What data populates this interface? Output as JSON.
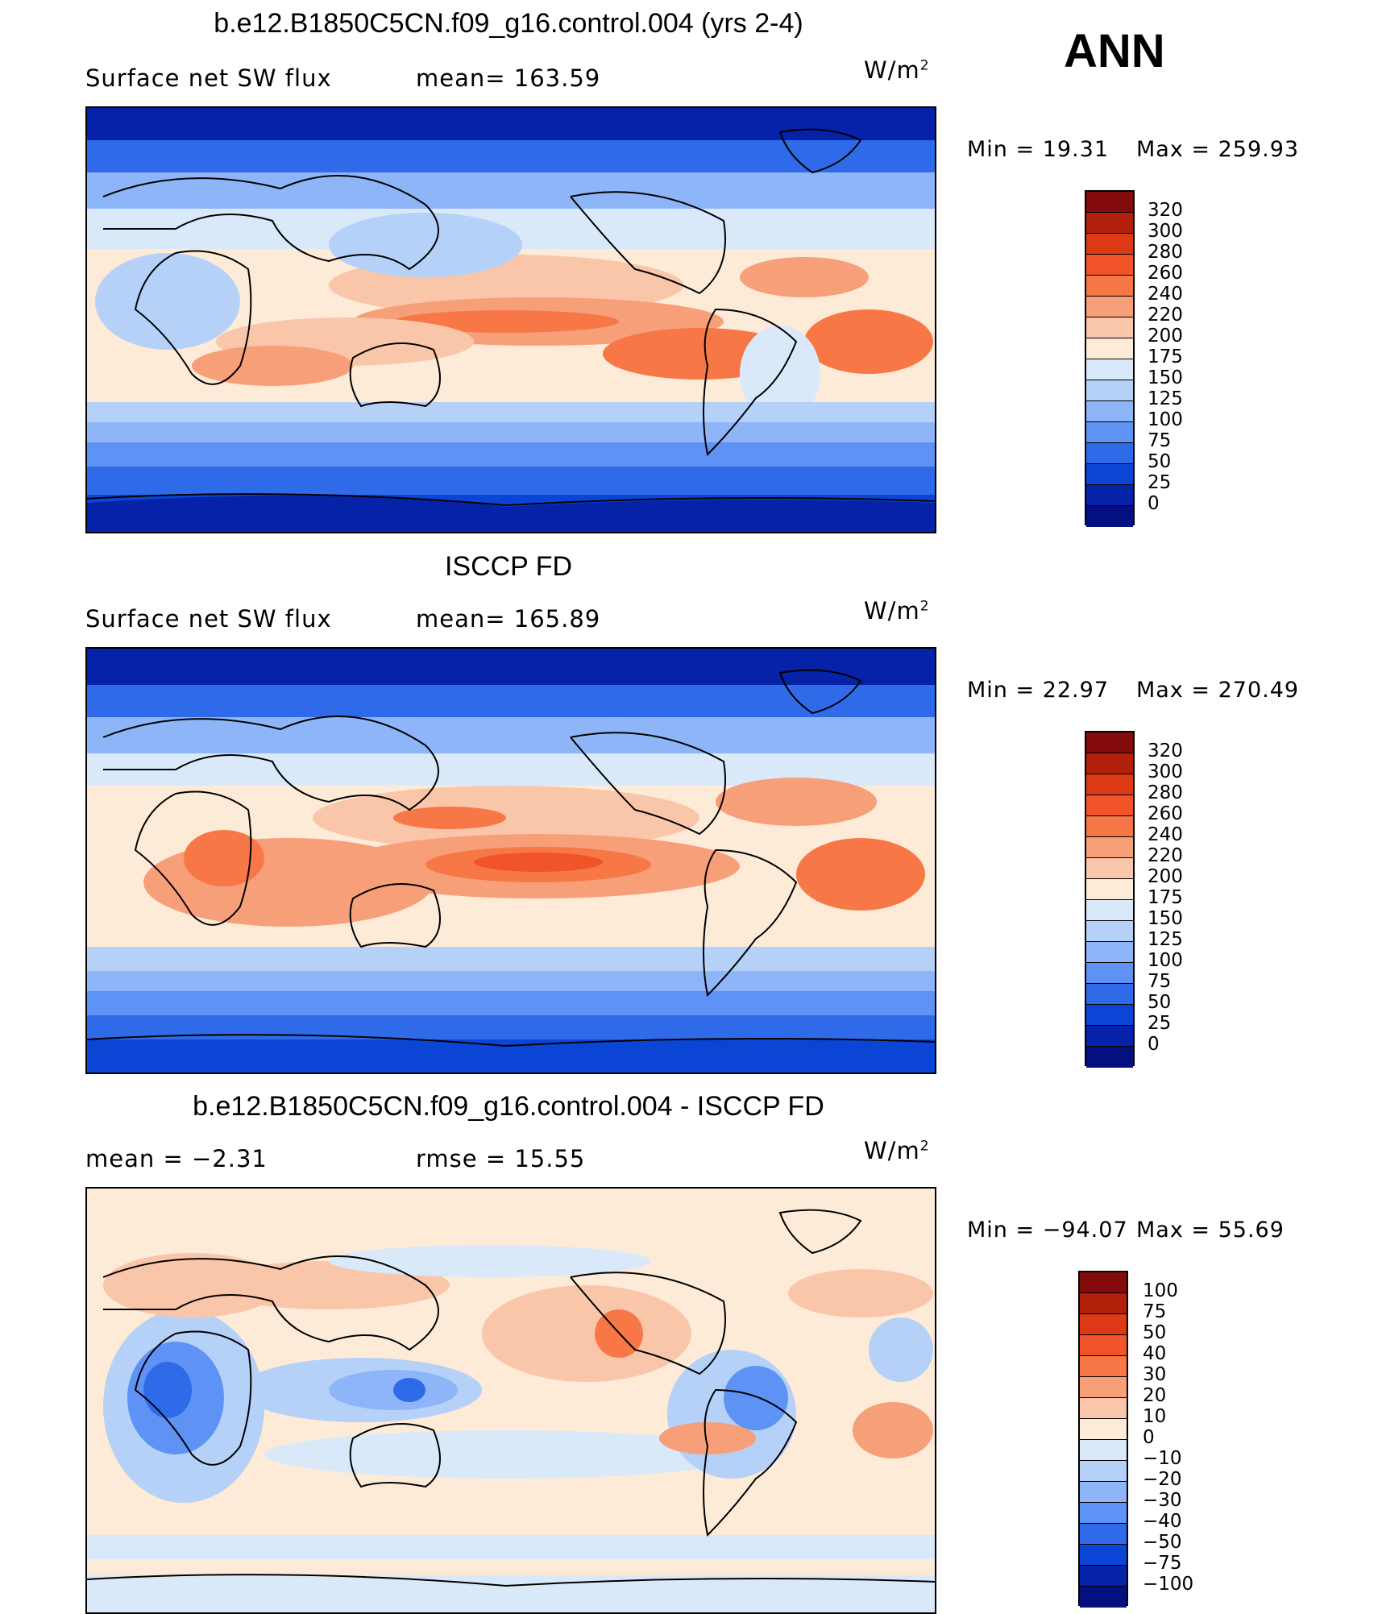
{
  "season": "ANN",
  "units": {
    "base": "W/m",
    "exp": "2"
  },
  "panels": [
    {
      "title": "b.e12.B1850C5CN.f09_g16.control.004 (yrs 2-4)",
      "left_text": "Surface net SW flux",
      "stat_text": "mean= 163.59",
      "min_text": "Min =   19.31",
      "max_text": "Max = 259.93",
      "colorbar_labels": [
        "320",
        "300",
        "280",
        "260",
        "240",
        "220",
        "200",
        "175",
        "150",
        "125",
        "100",
        "75",
        "50",
        "25",
        "0"
      ]
    },
    {
      "title": "ISCCP FD",
      "left_text": "Surface net SW flux",
      "stat_text": "mean= 165.89",
      "min_text": "Min =   22.97",
      "max_text": "Max = 270.49",
      "colorbar_labels": [
        "320",
        "300",
        "280",
        "260",
        "240",
        "220",
        "200",
        "175",
        "150",
        "125",
        "100",
        "75",
        "50",
        "25",
        "0"
      ]
    },
    {
      "title": "b.e12.B1850C5CN.f09_g16.control.004 - ISCCP FD",
      "left_text": "mean =   −2.31",
      "stat_text": "rmse =   15.55",
      "min_text": "Min = −94.07",
      "max_text": "Max =   55.69",
      "colorbar_labels": [
        "100",
        "75",
        "50",
        "40",
        "30",
        "20",
        "10",
        "0",
        "−10",
        "−20",
        "−30",
        "−40",
        "−50",
        "−75",
        "−100"
      ]
    }
  ],
  "colorbar_colors": [
    "#830b0b",
    "#b2200b",
    "#dc3a14",
    "#f2542a",
    "#f77846",
    "#f79f78",
    "#f9c6aa",
    "#fdebd8",
    "#dae9f9",
    "#b5d1f7",
    "#8eb5f7",
    "#5e92f5",
    "#2f6be8",
    "#0b45d6",
    "#0522a8",
    "#040f80"
  ]
}
